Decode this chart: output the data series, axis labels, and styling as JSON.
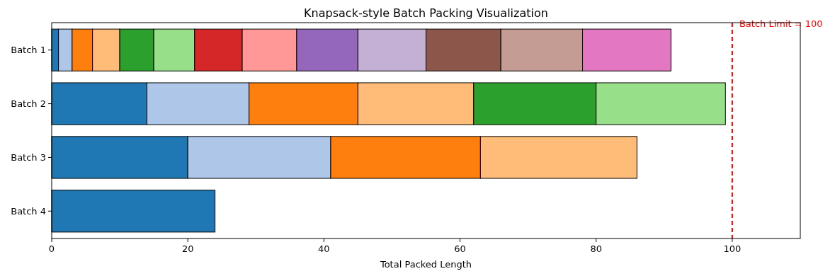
{
  "chart_data": {
    "type": "bar",
    "orientation": "horizontal",
    "stacked": true,
    "title": "Knapsack-style Batch Packing Visualization",
    "xlabel": "Total Packed Length",
    "categories": [
      "Batch 1",
      "Batch 2",
      "Batch 3",
      "Batch 4"
    ],
    "series": [
      {
        "color": "#1f77b4",
        "values": [
          1,
          14,
          20,
          24
        ]
      },
      {
        "color": "#aec7e8",
        "values": [
          2,
          15,
          21,
          null
        ]
      },
      {
        "color": "#ff7f0e",
        "values": [
          3,
          16,
          22,
          null
        ]
      },
      {
        "color": "#ffbb78",
        "values": [
          4,
          17,
          23,
          null
        ]
      },
      {
        "color": "#2ca02c",
        "values": [
          5,
          18,
          null,
          null
        ]
      },
      {
        "color": "#98df8a",
        "values": [
          6,
          19,
          null,
          null
        ]
      },
      {
        "color": "#d62728",
        "values": [
          7,
          null,
          null,
          null
        ]
      },
      {
        "color": "#ff9896",
        "values": [
          8,
          null,
          null,
          null
        ]
      },
      {
        "color": "#9467bd",
        "values": [
          9,
          null,
          null,
          null
        ]
      },
      {
        "color": "#c5b0d5",
        "values": [
          10,
          null,
          null,
          null
        ]
      },
      {
        "color": "#8c564b",
        "values": [
          11,
          null,
          null,
          null
        ]
      },
      {
        "color": "#c49c94",
        "values": [
          12,
          null,
          null,
          null
        ]
      },
      {
        "color": "#e377c2",
        "values": [
          13,
          null,
          null,
          null
        ]
      }
    ],
    "xlim": [
      0,
      110
    ],
    "xticks": [
      0,
      20,
      40,
      60,
      80,
      100
    ],
    "ref_lines": [
      {
        "axis": "x",
        "value": 100,
        "label": "Batch Limit = 100",
        "color": "#ff0000",
        "line_style": "dashed"
      }
    ]
  }
}
